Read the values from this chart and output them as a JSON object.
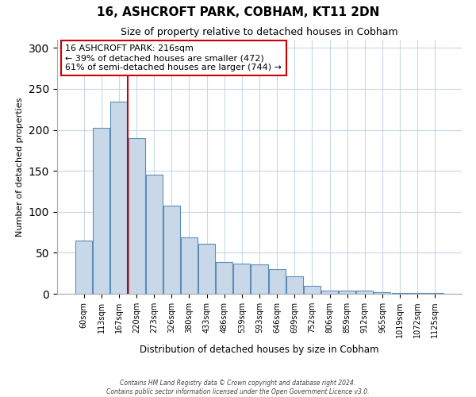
{
  "title": "16, ASHCROFT PARK, COBHAM, KT11 2DN",
  "subtitle": "Size of property relative to detached houses in Cobham",
  "xlabel": "Distribution of detached houses by size in Cobham",
  "ylabel": "Number of detached properties",
  "bin_labels": [
    "60sqm",
    "113sqm",
    "167sqm",
    "220sqm",
    "273sqm",
    "326sqm",
    "380sqm",
    "433sqm",
    "486sqm",
    "539sqm",
    "593sqm",
    "646sqm",
    "699sqm",
    "752sqm",
    "806sqm",
    "859sqm",
    "912sqm",
    "965sqm",
    "1019sqm",
    "1072sqm",
    "1125sqm"
  ],
  "bar_heights": [
    65,
    202,
    234,
    190,
    145,
    108,
    69,
    61,
    39,
    37,
    36,
    30,
    21,
    10,
    4,
    4,
    4,
    2,
    1,
    1,
    1
  ],
  "bar_color": "#c8d8e8",
  "bar_edge_color": "#5b8db8",
  "vline_position": 2.5,
  "vline_color": "#cc0000",
  "annotation_text_line1": "16 ASHCROFT PARK: 216sqm",
  "annotation_text_line2": "← 39% of detached houses are smaller (472)",
  "annotation_text_line3": "61% of semi-detached houses are larger (744) →",
  "annotation_box_color": "#ffffff",
  "annotation_box_edge_color": "#cc0000",
  "ylim": [
    0,
    310
  ],
  "yticks": [
    0,
    50,
    100,
    150,
    200,
    250,
    300
  ],
  "footer_line1": "Contains HM Land Registry data © Crown copyright and database right 2024.",
  "footer_line2": "Contains public sector information licensed under the Open Government Licence v3.0."
}
